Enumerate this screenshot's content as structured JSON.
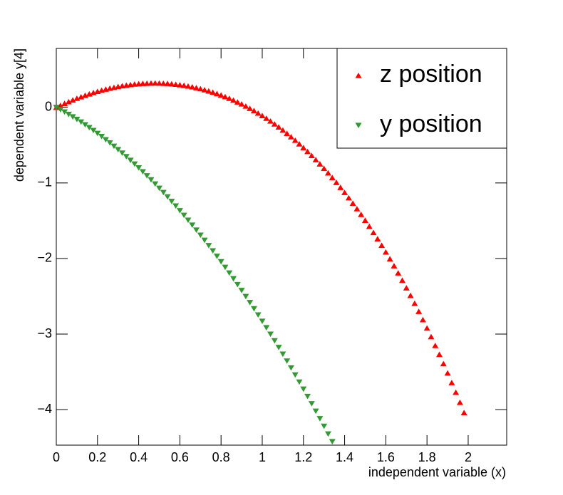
{
  "chart_data": {
    "type": "scatter",
    "xlabel": "independent variable (x)",
    "ylabel": "dependent variable y[4]",
    "xlim": [
      0,
      2.187
    ],
    "ylim": [
      -4.47,
      0.78
    ],
    "xticks": [
      0,
      0.2,
      0.4,
      0.6,
      0.8,
      1,
      1.2,
      1.4,
      1.6,
      1.8,
      2
    ],
    "yticks": [
      {
        "value": -4,
        "label": "−4"
      },
      {
        "value": -3,
        "label": "−3"
      },
      {
        "value": -2,
        "label": "−2"
      },
      {
        "value": -1,
        "label": "−1"
      },
      0
    ],
    "legend": "top-right",
    "x": [
      0,
      0.02,
      0.04,
      0.06,
      0.08,
      0.1,
      0.12,
      0.14,
      0.16,
      0.18,
      0.2,
      0.22,
      0.24,
      0.26,
      0.28,
      0.3,
      0.32,
      0.34,
      0.36,
      0.38,
      0.4,
      0.42,
      0.44,
      0.46,
      0.48,
      0.5,
      0.52,
      0.54,
      0.56,
      0.58,
      0.6,
      0.62,
      0.64,
      0.66,
      0.68,
      0.7,
      0.72,
      0.74,
      0.76,
      0.78,
      0.8,
      0.82,
      0.84,
      0.86,
      0.88,
      0.9,
      0.92,
      0.94,
      0.96,
      0.98,
      1,
      1.02,
      1.04,
      1.06,
      1.08,
      1.1,
      1.12,
      1.14,
      1.16,
      1.18,
      1.2,
      1.22,
      1.24,
      1.26,
      1.28,
      1.3,
      1.32,
      1.34,
      1.36,
      1.38,
      1.4,
      1.42,
      1.44,
      1.46,
      1.48,
      1.5,
      1.52,
      1.54,
      1.56,
      1.58,
      1.6,
      1.62,
      1.64,
      1.66,
      1.68,
      1.7,
      1.72,
      1.74,
      1.76,
      1.78,
      1.8,
      1.82,
      1.84,
      1.86,
      1.88,
      1.9,
      1.92,
      1.94,
      1.96,
      1.98
    ],
    "series": [
      {
        "name": "z position",
        "color": "#ff0000",
        "marker": "triangle-up",
        "values": [
          0,
          0.026,
          0.051,
          0.074,
          0.097,
          0.119,
          0.139,
          0.159,
          0.177,
          0.194,
          0.211,
          0.226,
          0.24,
          0.253,
          0.264,
          0.275,
          0.285,
          0.293,
          0.3,
          0.307,
          0.312,
          0.316,
          0.318,
          0.32,
          0.321,
          0.32,
          0.318,
          0.315,
          0.311,
          0.305,
          0.298,
          0.29,
          0.281,
          0.271,
          0.259,
          0.246,
          0.232,
          0.216,
          0.2,
          0.181,
          0.162,
          0.141,
          0.119,
          0.095,
          0.07,
          0.044,
          0.016,
          -0.014,
          -0.044,
          -0.077,
          -0.11,
          -0.145,
          -0.182,
          -0.221,
          -0.26,
          -0.302,
          -0.345,
          -0.39,
          -0.436,
          -0.484,
          -0.534,
          -0.585,
          -0.638,
          -0.693,
          -0.749,
          -0.808,
          -0.868,
          -0.93,
          -0.994,
          -1.06,
          -1.127,
          -1.197,
          -1.269,
          -1.342,
          -1.418,
          -1.495,
          -1.575,
          -1.657,
          -1.74,
          -1.826,
          -1.915,
          -2.005,
          -2.097,
          -2.192,
          -2.289,
          -2.389,
          -2.49,
          -2.594,
          -2.701,
          -2.81,
          -2.921,
          -3.035,
          -3.152,
          -3.27,
          -3.392,
          -3.516,
          -3.643,
          -3.772,
          -3.905,
          -4.04
        ]
      },
      {
        "name": "y position",
        "color": "#339933",
        "marker": "triangle-down",
        "values": [
          0,
          -0.03,
          -0.06,
          -0.092,
          -0.125,
          -0.158,
          -0.193,
          -0.229,
          -0.267,
          -0.305,
          -0.344,
          -0.385,
          -0.427,
          -0.469,
          -0.513,
          -0.558,
          -0.604,
          -0.651,
          -0.7,
          -0.749,
          -0.8,
          -0.851,
          -0.904,
          -0.958,
          -1.013,
          -1.069,
          -1.126,
          -1.184,
          -1.244,
          -1.304,
          -1.366,
          -1.428,
          -1.492,
          -1.557,
          -1.623,
          -1.69,
          -1.758,
          -1.828,
          -1.898,
          -1.97,
          -2.042,
          -2.116,
          -2.191,
          -2.267,
          -2.344,
          -2.422,
          -2.502,
          -2.582,
          -2.664,
          -2.746,
          -2.83,
          -2.915,
          -3.001,
          -3.088,
          -3.176,
          -3.265,
          -3.356,
          -3.447,
          -3.54,
          -3.634,
          -3.728,
          -3.824,
          -3.921,
          -4.02,
          -4.119,
          -4.219,
          -4.321,
          -4.423,
          null,
          null,
          null,
          null,
          null,
          null,
          null,
          null,
          null,
          null,
          null,
          null,
          null,
          null,
          null,
          null,
          null,
          null,
          null,
          null,
          null,
          null,
          null,
          null,
          null,
          null,
          null,
          null,
          null,
          null,
          null,
          null
        ]
      }
    ]
  }
}
